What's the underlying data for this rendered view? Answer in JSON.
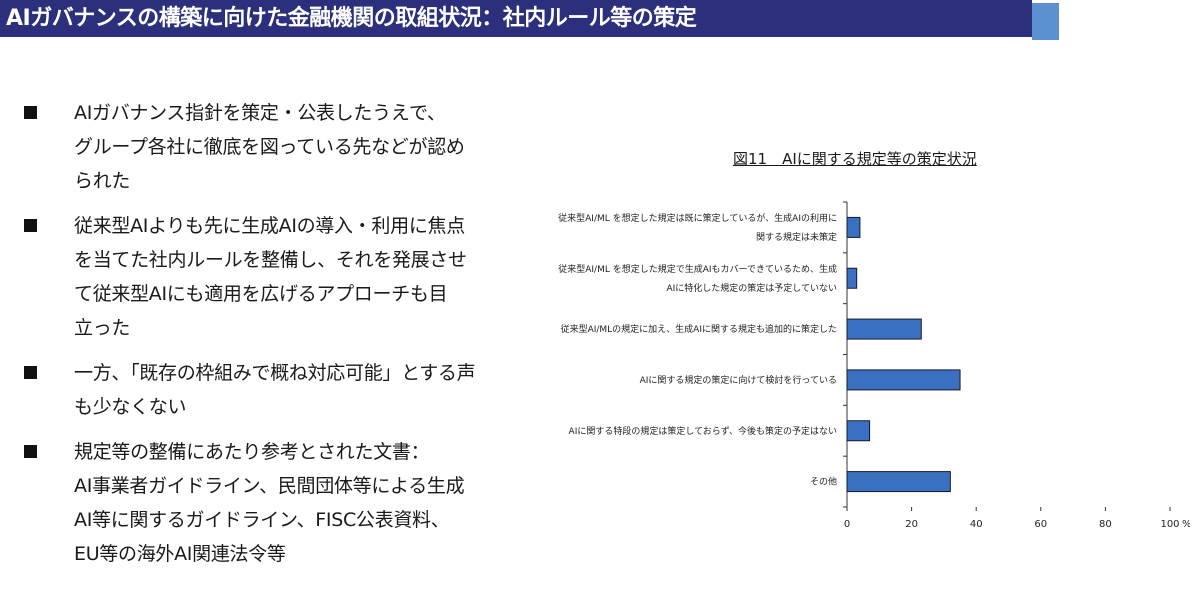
{
  "header": {
    "title": "AIガバナンスの構築に向けた金融機関の取組状況：社内ルール等の策定",
    "bar_color": "#2b2f7c",
    "accent_color": "#5b8fd0"
  },
  "bullets": [
    {
      "lines": [
        "AIガバナンス指針を策定・公表したうえで、",
        "グループ各社に徹底を図っている先などが認め",
        "られた"
      ]
    },
    {
      "lines": [
        "従来型AIよりも先に生成AIの導入・利用に焦点",
        "を当てた社内ルールを整備し、それを発展させ",
        "て従来型AIにも適用を広げるアプローチも目",
        "立った"
      ]
    },
    {
      "lines": [
        "一方、「既存の枠組みで概ね対応可能」とする声",
        "も少なくない"
      ]
    },
    {
      "lines": [
        "規定等の整備にあたり参考とされた文書：",
        "AI事業者ガイドライン、民間団体等による生成",
        "AI等に関するガイドライン、FISC公表資料、",
        "EU等の海外AI関連法令等"
      ]
    }
  ],
  "chart_data": {
    "type": "bar",
    "orientation": "horizontal",
    "title": "図11　AIに関する規定等の策定状況",
    "categories": [
      [
        "従来型AI/ML を想定した規定は既に策定しているが、生成AIの利用に",
        "関する規定は未策定"
      ],
      [
        "従来型AI/ML を想定した規定で生成AIもカバーできているため、生成",
        "AIに特化した規定の策定は予定していない"
      ],
      [
        "従来型AI/MLの規定に加え、生成AIに関する規定も追加的に策定した"
      ],
      [
        "AIに関する規定の策定に向けて検討を行っている"
      ],
      [
        "AIに関する特段の規定は策定しておらず、今後も策定の予定はない"
      ],
      [
        "その他"
      ]
    ],
    "values": [
      4,
      3,
      23,
      35,
      7,
      32
    ],
    "xlim": [
      0,
      100
    ],
    "xticks": [
      "0",
      "20",
      "40",
      "60",
      "80",
      "100"
    ],
    "x_unit": "%",
    "bar_color": "#3a70c0",
    "bar_edge_color": "#1a1a2a",
    "grid": false
  }
}
